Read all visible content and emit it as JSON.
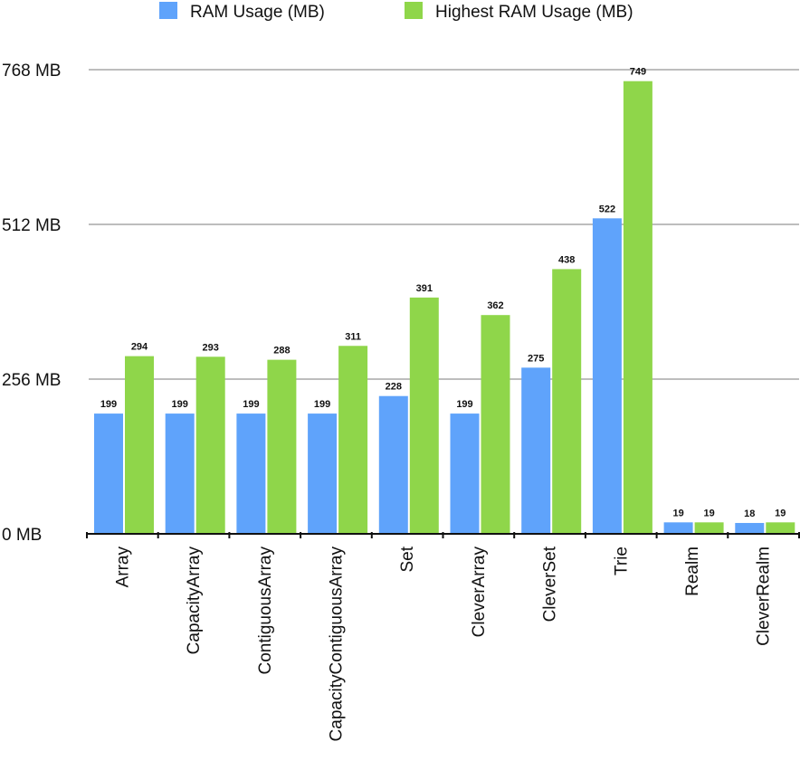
{
  "chart_data": {
    "type": "bar",
    "title": "",
    "xlabel": "",
    "ylabel": "",
    "ylim": [
      0,
      768
    ],
    "yticks": [
      0,
      256,
      512,
      768
    ],
    "ytick_labels": [
      "0 MB",
      "256 MB",
      "512 MB",
      "768 MB"
    ],
    "grid": true,
    "legend_position": "top",
    "categories": [
      "Array",
      "CapacityArray",
      "ContiguousArray",
      "CapacityContiguousArray",
      "Set",
      "CleverArray",
      "CleverSet",
      "Trie",
      "Realm",
      "CleverRealm"
    ],
    "series": [
      {
        "name": "RAM Usage (MB)",
        "color": "#5fa3fb",
        "values": [
          199,
          199,
          199,
          199,
          228,
          199,
          275,
          522,
          19,
          18
        ]
      },
      {
        "name": "Highest RAM Usage (MB)",
        "color": "#8fd64a",
        "values": [
          294,
          293,
          288,
          311,
          391,
          362,
          438,
          749,
          19,
          19
        ]
      }
    ]
  }
}
